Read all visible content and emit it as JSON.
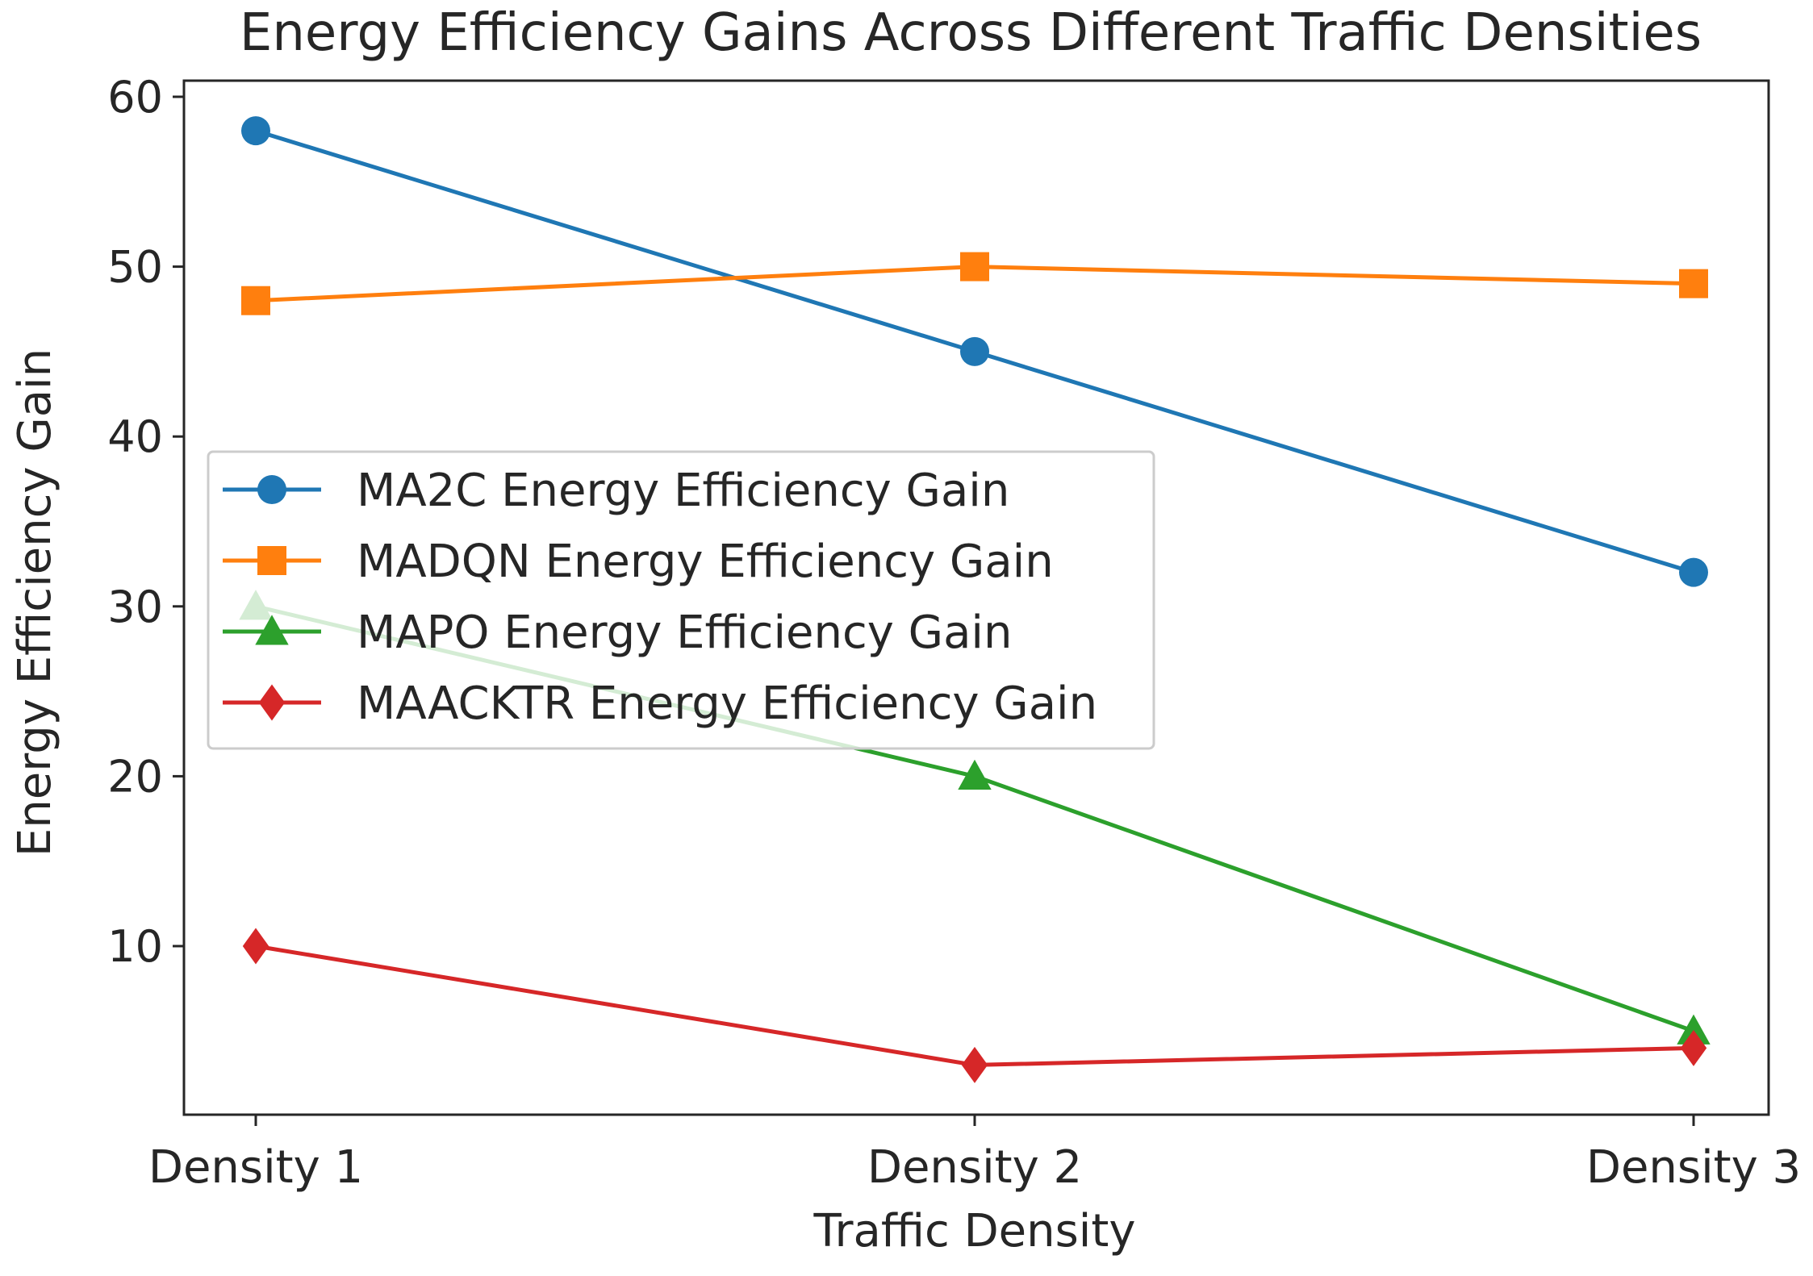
{
  "chart_data": {
    "type": "line",
    "title": "Energy Efficiency Gains Across Different Traffic Densities",
    "xlabel": "Traffic Density",
    "ylabel": "Energy Efficiency Gain",
    "categories": [
      "Density 1",
      "Density 2",
      "Density 3"
    ],
    "ylim": [
      0,
      60
    ],
    "yticks": [
      10,
      20,
      30,
      40,
      50,
      60
    ],
    "grid": false,
    "legend_position": "center-left",
    "series": [
      {
        "name": "MA2C Energy Efficiency Gain",
        "values": [
          58,
          45,
          32
        ],
        "color": "#1f77b4",
        "marker": "circle"
      },
      {
        "name": "MADQN Energy Efficiency Gain",
        "values": [
          48,
          50,
          49
        ],
        "color": "#ff7f0e",
        "marker": "square"
      },
      {
        "name": "MAPO Energy Efficiency Gain",
        "values": [
          30,
          20,
          5
        ],
        "color": "#2ca02c",
        "marker": "triangle"
      },
      {
        "name": "MAACKTR Energy Efficiency Gain",
        "values": [
          10,
          3,
          4
        ],
        "color": "#d62728",
        "marker": "diamond"
      }
    ]
  }
}
